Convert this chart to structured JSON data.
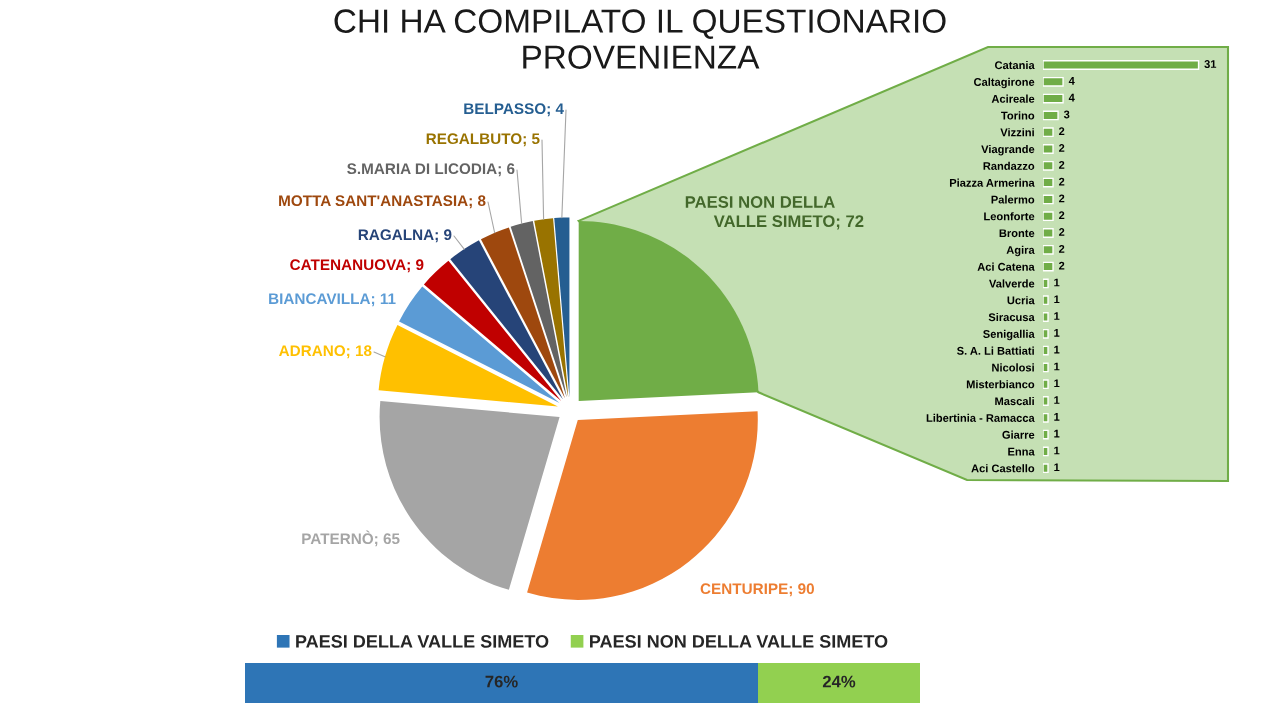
{
  "chart_data": [
    {
      "type": "pie",
      "title": "CHI HA COMPILATO IL QUESTIONARIO",
      "subtitle": "PROVENIENZA",
      "categories": [
        "PAESI NON DELLA VALLE SIMETO",
        "CENTURIPE",
        "PATERNÒ",
        "ADRANO",
        "BIANCAVILLA",
        "CATENANUOVA",
        "RAGALNA",
        "MOTTA SANT'ANASTASIA",
        "S.MARIA DI LICODIA",
        "REGALBUTO",
        "BELPASSO"
      ],
      "values": [
        72,
        90,
        65,
        18,
        11,
        9,
        9,
        8,
        6,
        5,
        4
      ],
      "value_labels": [
        "; 72",
        "; 90",
        "; 65",
        "; 18",
        "; 11",
        "; 9",
        "; 9",
        "; 8",
        "; 6",
        "; 5",
        "; 4"
      ],
      "colors": [
        "#70ad47",
        "#ed7d31",
        "#a5a5a5",
        "#ffc000",
        "#5b9bd5",
        "#c00000",
        "#264478",
        "#9e480e",
        "#636363",
        "#997300",
        "#255e91"
      ]
    },
    {
      "type": "bar",
      "orientation": "horizontal",
      "categories": [
        "Catania",
        "Caltagirone",
        "Acireale",
        "Torino",
        "Vizzini",
        "Viagrande",
        "Randazzo",
        "Piazza Armerina",
        "Palermo",
        "Leonforte",
        "Bronte",
        "Agira",
        "Aci Catena",
        "Valverde",
        "Ucria",
        "Siracusa",
        "Senigallia",
        "S. A. Li Battiati",
        "Nicolosi",
        "Misterbianco",
        "Mascali",
        "Libertinia - Ramacca",
        "Giarre",
        "Enna",
        "Aci Castello"
      ],
      "values": [
        31,
        4,
        4,
        3,
        2,
        2,
        2,
        2,
        2,
        2,
        2,
        2,
        2,
        1,
        1,
        1,
        1,
        1,
        1,
        1,
        1,
        1,
        1,
        1,
        1
      ],
      "color": "#70ad47",
      "data_labels": true,
      "tick_labels": "y"
    },
    {
      "type": "bar",
      "orientation": "horizontal",
      "stacked": true,
      "categories": [
        null
      ],
      "series": [
        {
          "name": "PAESI DELLA VALLE SIMETO",
          "color": "#2e75b6",
          "values": [
            76
          ],
          "value_labels": [
            "76%"
          ]
        },
        {
          "name": "PAESI NON DELLA VALLE SIMETO",
          "color": "#92d050",
          "values": [
            24
          ],
          "value_labels": [
            "24%"
          ]
        }
      ],
      "xlim": [
        0,
        100
      ],
      "legend": "top",
      "tick_labels": false
    }
  ]
}
